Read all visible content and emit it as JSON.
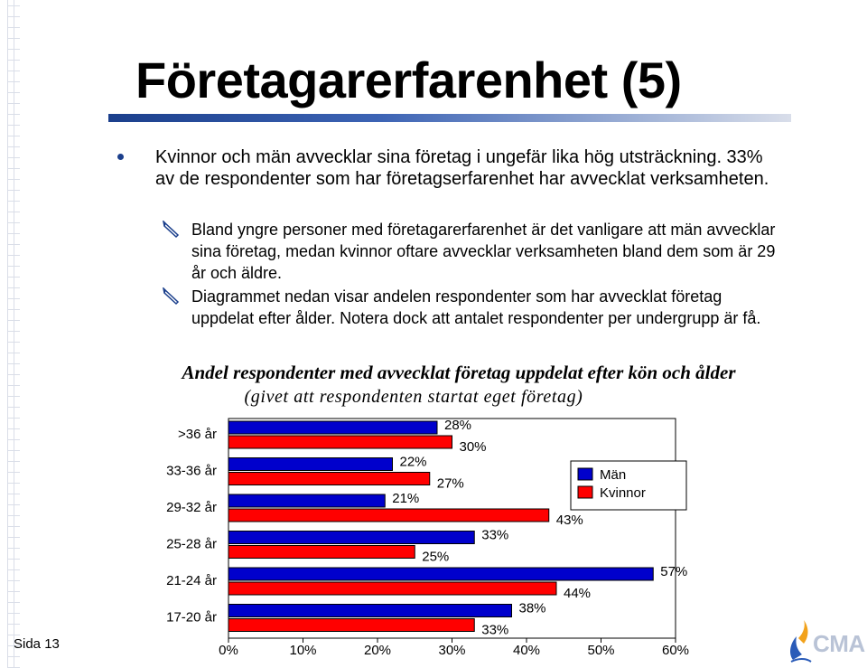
{
  "slide": {
    "title": "Företagarerfarenhet (5)",
    "page_number": "Sida 13",
    "logo_text": "CMA",
    "bullet_main": "Kvinnor och män avvecklar sina företag i ungefär lika hög utsträckning. 33% av de respondenter som har företagserfarenhet har avvecklat verksamheten.",
    "sub_bullets": [
      "Bland yngre personer med företagarerfarenhet är det vanligare att män avvecklar sina företag, medan kvinnor oftare avvecklar verksamheten bland dem som är 29 år och äldre.",
      "Diagrammet nedan visar andelen respondenter som har avvecklat företag uppdelat efter ålder. Notera dock att antalet respondenter per undergrupp är få."
    ]
  },
  "colors": {
    "man": "#0000cc",
    "kvinnor": "#ff0000",
    "title_rule": "#1b3f8c"
  },
  "chart_data": {
    "type": "bar",
    "orientation": "horizontal",
    "title": "Andel respondenter med avvecklat företag uppdelat efter kön och ålder",
    "subtitle": "(givet att respondenten startat eget företag)",
    "categories": [
      ">36 år",
      "33-36 år",
      "29-32 år",
      "25-28 år",
      "21-24 år",
      "17-20 år"
    ],
    "series": [
      {
        "name": "Män",
        "values": [
          28,
          22,
          21,
          33,
          57,
          38
        ],
        "labels": [
          "28%",
          "22%",
          "21%",
          "33%",
          "57%",
          "38%"
        ]
      },
      {
        "name": "Kvinnor",
        "values": [
          30,
          27,
          43,
          25,
          44,
          33
        ],
        "labels": [
          "30%",
          "27%",
          "43%",
          "25%",
          "44%",
          "33%"
        ]
      }
    ],
    "xlim": [
      0,
      60
    ],
    "x_ticks": [
      "0%",
      "10%",
      "20%",
      "30%",
      "40%",
      "50%",
      "60%"
    ],
    "legend_position": "top-right",
    "grid": false
  }
}
